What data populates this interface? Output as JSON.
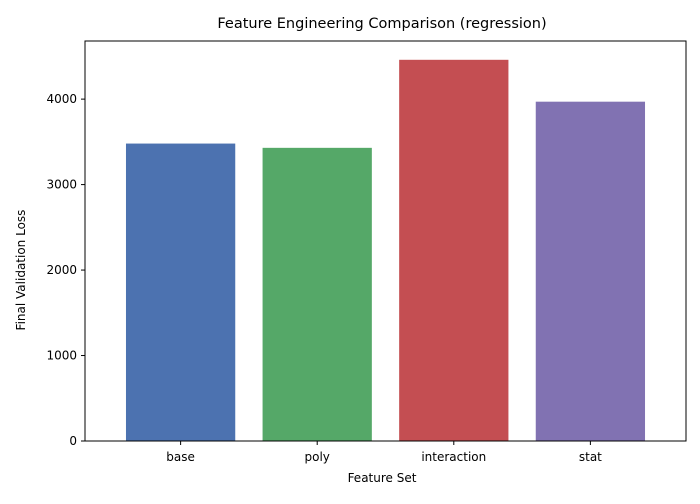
{
  "chart_data": {
    "type": "bar",
    "title": "Feature Engineering Comparison (regression)",
    "xlabel": "Feature Set",
    "ylabel": "Final Validation Loss",
    "categories": [
      "base",
      "poly",
      "interaction",
      "stat"
    ],
    "values": [
      3480,
      3430,
      4460,
      3970
    ],
    "colors": [
      "#4c72b0",
      "#55a868",
      "#c44e52",
      "#8172b2"
    ],
    "ylim": [
      0,
      4680
    ],
    "yticks": [
      0,
      1000,
      2000,
      3000,
      4000
    ],
    "grid": false,
    "legend": "none"
  }
}
